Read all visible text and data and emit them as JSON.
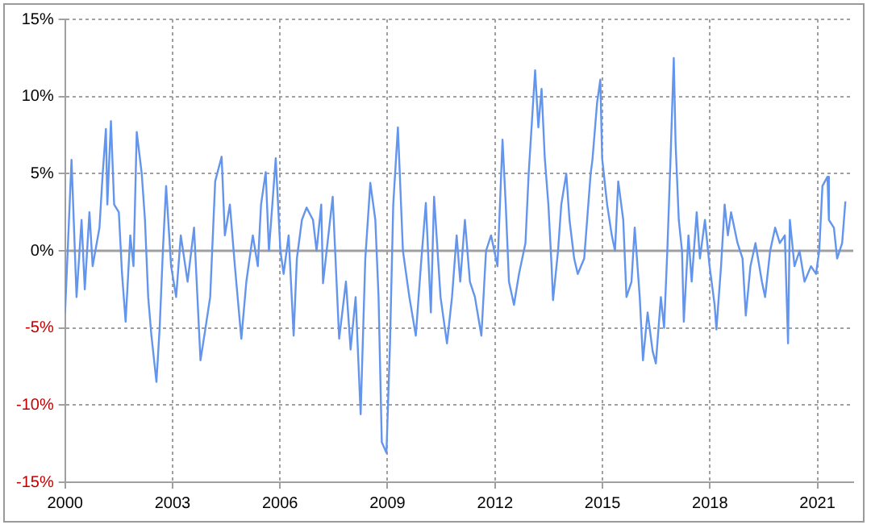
{
  "chart_data": {
    "type": "line",
    "x": [
      2000.0,
      2000.18,
      2000.32,
      2000.46,
      2000.55,
      2000.68,
      2000.77,
      2000.96,
      2001.05,
      2001.14,
      2001.18,
      2001.28,
      2001.37,
      2001.5,
      2001.59,
      2001.69,
      2001.82,
      2001.91,
      2002.0,
      2002.14,
      2002.23,
      2002.32,
      2002.41,
      2002.55,
      2002.64,
      2002.73,
      2002.82,
      2002.96,
      2003.1,
      2003.23,
      2003.42,
      2003.6,
      2003.78,
      2003.92,
      2004.05,
      2004.19,
      2004.37,
      2004.46,
      2004.6,
      2004.74,
      2004.92,
      2005.06,
      2005.24,
      2005.38,
      2005.47,
      2005.6,
      2005.69,
      2005.88,
      2006.01,
      2006.1,
      2006.24,
      2006.38,
      2006.47,
      2006.61,
      2006.74,
      2006.92,
      2007.02,
      2007.15,
      2007.2,
      2007.47,
      2007.65,
      2007.84,
      2007.97,
      2008.11,
      2008.25,
      2008.38,
      2008.52,
      2008.66,
      2008.75,
      2008.84,
      2008.97,
      2009.07,
      2009.16,
      2009.29,
      2009.43,
      2009.61,
      2009.79,
      2009.93,
      2010.07,
      2010.21,
      2010.3,
      2010.48,
      2010.66,
      2010.8,
      2010.93,
      2011.03,
      2011.16,
      2011.3,
      2011.44,
      2011.62,
      2011.75,
      2011.89,
      2012.07,
      2012.21,
      2012.3,
      2012.39,
      2012.53,
      2012.67,
      2012.85,
      2012.94,
      2013.12,
      2013.21,
      2013.3,
      2013.39,
      2013.49,
      2013.58,
      2013.62,
      2013.76,
      2013.85,
      2013.99,
      2014.08,
      2014.21,
      2014.31,
      2014.49,
      2014.67,
      2014.72,
      2014.85,
      2014.94,
      2014.99,
      2015.13,
      2015.26,
      2015.35,
      2015.44,
      2015.58,
      2015.67,
      2015.81,
      2015.9,
      2016.04,
      2016.13,
      2016.26,
      2016.4,
      2016.49,
      2016.63,
      2016.72,
      2016.81,
      2016.9,
      2016.99,
      2017.04,
      2017.13,
      2017.22,
      2017.27,
      2017.4,
      2017.49,
      2017.63,
      2017.72,
      2017.86,
      2017.99,
      2018.13,
      2018.18,
      2018.31,
      2018.41,
      2018.5,
      2018.59,
      2018.77,
      2018.91,
      2019.0,
      2019.13,
      2019.27,
      2019.45,
      2019.54,
      2019.68,
      2019.82,
      2019.95,
      2020.09,
      2020.18,
      2020.23,
      2020.36,
      2020.5,
      2020.64,
      2020.82,
      2020.96,
      2021.05,
      2021.14,
      2021.28,
      2021.32,
      2021.46,
      2021.55,
      2021.69,
      2021.78
    ],
    "series": [
      {
        "color": "#6495ed",
        "values": [
          -4,
          5.9,
          -3,
          2,
          -2.5,
          2.5,
          -1,
          1.5,
          5,
          7.9,
          3,
          8.4,
          3,
          2.5,
          -1.5,
          -4.6,
          1,
          -1,
          7.7,
          5,
          2,
          -3,
          -5.5,
          -8.5,
          -5,
          0,
          4.2,
          -1,
          -3,
          1,
          -2,
          1.5,
          -7.1,
          -5,
          -3,
          4.5,
          6.1,
          1,
          3,
          -1,
          -5.7,
          -2,
          1,
          -1,
          3,
          5.1,
          0,
          6,
          0,
          -1.5,
          1,
          -5.5,
          -0.5,
          2,
          2.8,
          2,
          0,
          3,
          -2.1,
          3.5,
          -5.7,
          -2,
          -6.4,
          -3,
          -10.6,
          -0.5,
          4.4,
          2,
          -3,
          -12.4,
          -13.1,
          -6,
          3,
          8,
          0,
          -3,
          -5.5,
          -1,
          3.1,
          -4,
          3.5,
          -3,
          -6,
          -3,
          1,
          -2,
          2,
          -2,
          -3,
          -5.5,
          0,
          1,
          -1,
          7.2,
          3,
          -2,
          -3.5,
          -1.5,
          0.5,
          5,
          11.7,
          8,
          10.5,
          6,
          3,
          -1,
          -3.2,
          0,
          3,
          5,
          2,
          -0.5,
          -1.5,
          -0.5,
          5,
          5.9,
          9.6,
          11.1,
          6,
          3,
          1,
          0,
          4.5,
          2,
          -3,
          -2,
          1.5,
          -3,
          -7.1,
          -4,
          -6.5,
          -7.3,
          -3,
          -5,
          0,
          6,
          12.5,
          7,
          2,
          0,
          -4.6,
          1,
          -2,
          2.5,
          -0.5,
          2,
          -1,
          -3.5,
          -5.1,
          -1,
          3,
          1,
          2.5,
          0.5,
          -0.5,
          -4.2,
          -1,
          0.5,
          -2,
          -3,
          0,
          1.5,
          0.5,
          1,
          -6,
          2,
          -1,
          0,
          -2,
          -1,
          -1.5,
          0,
          4.2,
          4.8,
          2,
          1.5,
          -0.5,
          0.5,
          3.2
        ]
      }
    ],
    "xlim": [
      2000,
      2022
    ],
    "xticks": [
      2000,
      2003,
      2006,
      2009,
      2012,
      2015,
      2018,
      2021
    ],
    "ylim": [
      -15,
      15
    ],
    "yticks": [
      {
        "value": -15,
        "label": "-15%"
      },
      {
        "value": -10,
        "label": "-10%"
      },
      {
        "value": -5,
        "label": "-5%"
      },
      {
        "value": 0,
        "label": "0%"
      },
      {
        "value": 5,
        "label": "5%"
      },
      {
        "value": 10,
        "label": "10%"
      },
      {
        "value": 15,
        "label": "15%"
      }
    ],
    "ref_lines": [
      {
        "axis": "y",
        "value": 0,
        "color": "#a0a0a0"
      }
    ],
    "grid": true,
    "legend": false,
    "marker": "none",
    "line_style": "solid"
  }
}
